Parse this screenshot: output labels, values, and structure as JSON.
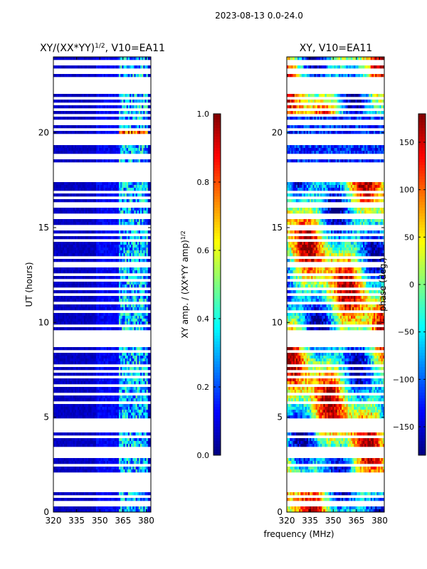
{
  "figure": {
    "suptitle": "2023-08-13 0.0-24.0"
  },
  "chart_data": [
    {
      "type": "heatmap",
      "title": "XY/(XX*YY)^1/2, V10=EA11",
      "title_main": "XY/(XX*YY)",
      "title_exp": "1/2",
      "title_tail": ", V10=EA11",
      "xlabel": "",
      "ylabel": "UT (hours)",
      "xlim": [
        320,
        383
      ],
      "ylim": [
        0,
        24
      ],
      "x_ticks": [
        "320",
        "335",
        "350",
        "365",
        "380"
      ],
      "x_tick_values": [
        320,
        335,
        350,
        365,
        380
      ],
      "y_ticks": [
        "0",
        "5",
        "10",
        "15",
        "20"
      ],
      "y_tick_values": [
        0,
        5,
        10,
        15,
        20
      ],
      "colorbar": {
        "label": "XY amp. / (XX*YY amp)^1/2",
        "label_main": "XY amp. / (XX*YY amp)",
        "label_exp": "1/2",
        "range": [
          0.0,
          1.0
        ],
        "ticks": [
          "0.0",
          "0.2",
          "0.4",
          "0.6",
          "0.8",
          "1.0"
        ],
        "tick_values": [
          0.0,
          0.2,
          0.4,
          0.6,
          0.8,
          1.0
        ]
      }
    },
    {
      "type": "heatmap",
      "title": "XY, V10=EA11",
      "xlabel": "frequency (MHz)",
      "ylabel": "",
      "xlim": [
        320,
        383
      ],
      "ylim": [
        0,
        24
      ],
      "x_ticks": [
        "320",
        "335",
        "350",
        "365",
        "380"
      ],
      "x_tick_values": [
        320,
        335,
        350,
        365,
        380
      ],
      "y_ticks": [
        "0",
        "5",
        "10",
        "15",
        "20"
      ],
      "y_tick_values": [
        0,
        5,
        10,
        15,
        20
      ],
      "colorbar": {
        "label": "phase (deg.)",
        "range": [
          -180,
          180
        ],
        "ticks": [
          "−150",
          "−100",
          "−50",
          "0",
          "50",
          "100",
          "150"
        ],
        "tick_values": [
          -150,
          -100,
          -50,
          0,
          50,
          100,
          150
        ]
      }
    }
  ],
  "colormap": {
    "name": "jet",
    "stops": [
      "#00007f",
      "#0000ff",
      "#007fff",
      "#00ffff",
      "#7fff7f",
      "#ffff00",
      "#ff7f00",
      "#ff0000",
      "#7f0000"
    ]
  },
  "flagged_hours": [
    0.4,
    0.55,
    0.8,
    1.2,
    1.4,
    1.6,
    1.8,
    2.05,
    2.5,
    2.55,
    3.0,
    3.1,
    3.2,
    3.4,
    3.6,
    4.0,
    4.25,
    4.5,
    4.7,
    4.9,
    5.4,
    5.8,
    6.3,
    6.7,
    7.1,
    7.45,
    7.8,
    8.5,
    8.8,
    9.0,
    9.2,
    9.4,
    9.6,
    9.8,
    10.6,
    11.1,
    11.45,
    11.75,
    12.2,
    12.6,
    12.9,
    13.2,
    13.4,
    14.3,
    14.35,
    14.6,
    14.9,
    15.1,
    15.5,
    15.7,
    16.2,
    16.3,
    16.6,
    16.9,
    17.5,
    17.7,
    17.9,
    18.05,
    18.2,
    18.4,
    18.6,
    18.9,
    19.5,
    19.8,
    20.1,
    20.5,
    20.55,
    20.9,
    21.2,
    21.5,
    21.9,
    22.2,
    22.5,
    22.8,
    23.1,
    23.4,
    23.7
  ]
}
